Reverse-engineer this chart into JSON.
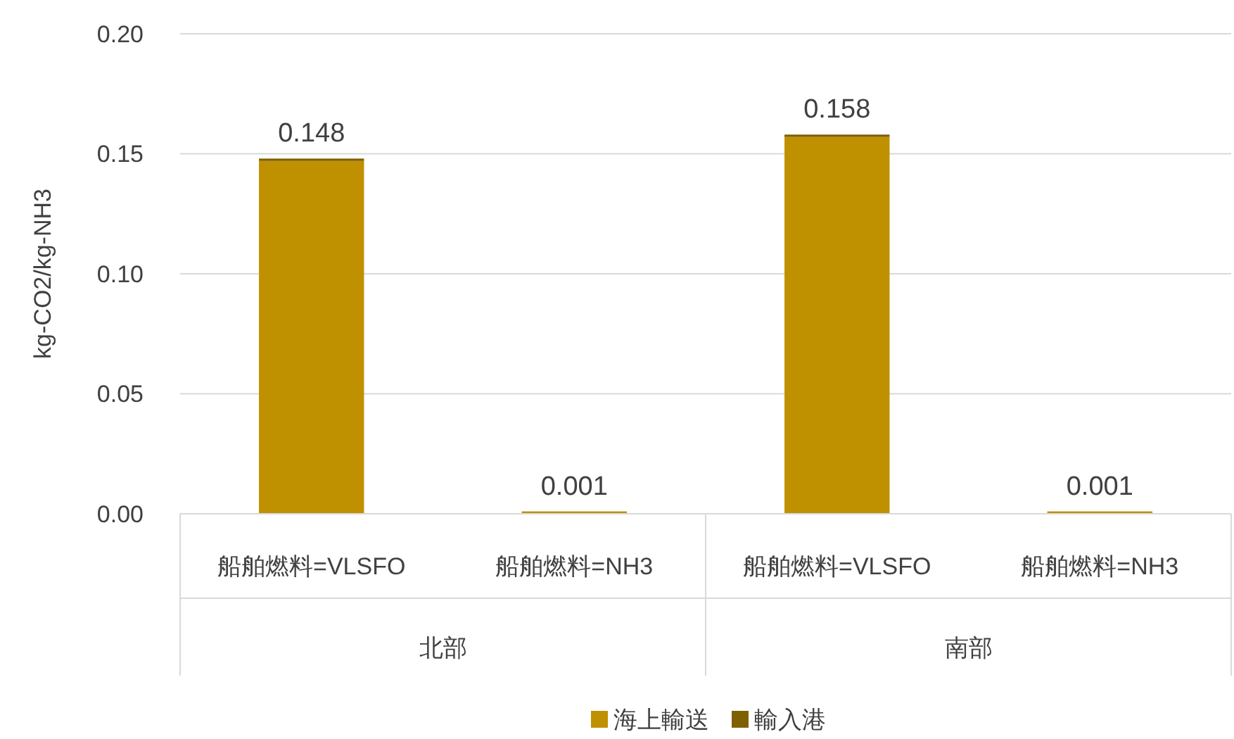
{
  "chart_data": {
    "type": "bar",
    "stacked": true,
    "ylabel": "kg-CO2/kg-NH3",
    "categories": [
      "船舶燃料=VLSFO",
      "船舶燃料=NH3",
      "船舶燃料=VLSFO",
      "船舶燃料=NH3"
    ],
    "series": [
      {
        "name": "海上輸送",
        "color": "#bf9000",
        "values": [
          0.147,
          0.001,
          0.157,
          0.001
        ]
      },
      {
        "name": "輸入港",
        "color": "#7f6000",
        "values": [
          0.001,
          0,
          0.001,
          0
        ]
      }
    ],
    "totals": [
      "0.148",
      "0.001",
      "0.158",
      "0.001"
    ],
    "annotations": [
      "北部",
      "南部"
    ],
    "ylim": [
      0,
      0.2
    ],
    "yticks": [
      {
        "value": 0,
        "label": "0.00"
      },
      {
        "value": 0.05,
        "label": "0.05"
      },
      {
        "value": 0.1,
        "label": "0.10"
      },
      {
        "value": 0.15,
        "label": "0.15"
      },
      {
        "value": 0.2,
        "label": "0.20"
      }
    ],
    "grid": "y",
    "legend": "bottom"
  }
}
